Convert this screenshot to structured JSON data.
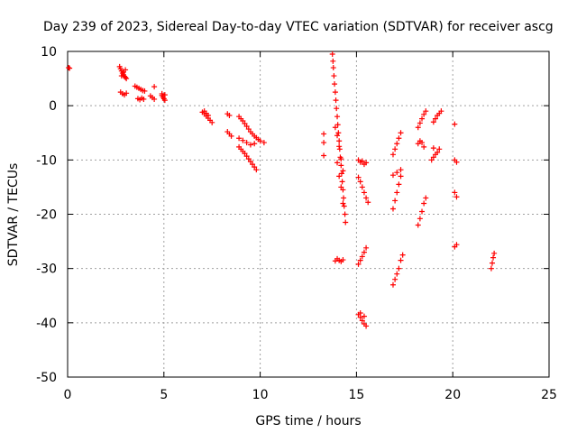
{
  "chart_data": {
    "type": "scatter",
    "title": "Day 239 of 2023, Sidereal Day-to-day VTEC variation (SDTVAR) for receiver ascg",
    "xlabel": "GPS time / hours",
    "ylabel": "SDTVAR / TECUs",
    "xlim": [
      0,
      25
    ],
    "ylim": [
      -50,
      10
    ],
    "xticks": [
      "0",
      "5",
      "10",
      "15",
      "20",
      "25"
    ],
    "yticks": [
      "10",
      "0",
      "-10",
      "-20",
      "-30",
      "-40",
      "-50"
    ],
    "grid": true,
    "marker": "+",
    "color": "#ff0000",
    "series": [
      {
        "name": "sdtvar",
        "points": [
          [
            0.05,
            7
          ],
          [
            0.1,
            6.9
          ],
          [
            2.7,
            7.2
          ],
          [
            2.75,
            6.8
          ],
          [
            2.8,
            6.4
          ],
          [
            2.85,
            6
          ],
          [
            2.9,
            5.7
          ],
          [
            2.95,
            5.4
          ],
          [
            3.0,
            5.2
          ],
          [
            3.05,
            5.0
          ],
          [
            2.8,
            5.5
          ],
          [
            2.9,
            6.2
          ],
          [
            3.0,
            6.6
          ],
          [
            2.75,
            2.5
          ],
          [
            2.85,
            2.2
          ],
          [
            2.95,
            2.0
          ],
          [
            3.05,
            2.3
          ],
          [
            3.5,
            3.6
          ],
          [
            3.6,
            3.4
          ],
          [
            3.7,
            3.2
          ],
          [
            3.8,
            3.0
          ],
          [
            3.9,
            2.8
          ],
          [
            4.0,
            2.7
          ],
          [
            3.65,
            1.3
          ],
          [
            3.75,
            1.1
          ],
          [
            3.85,
            1.4
          ],
          [
            3.95,
            1.2
          ],
          [
            4.3,
            1.8
          ],
          [
            4.4,
            1.5
          ],
          [
            4.5,
            1.2
          ],
          [
            4.5,
            3.5
          ],
          [
            4.9,
            1.9
          ],
          [
            4.95,
            1.6
          ],
          [
            5.0,
            1.3
          ],
          [
            5.05,
            1.0
          ],
          [
            4.9,
            2.2
          ],
          [
            5.05,
            2.0
          ],
          [
            7.0,
            -1.2
          ],
          [
            7.1,
            -1.5
          ],
          [
            7.2,
            -1.9
          ],
          [
            7.3,
            -2.3
          ],
          [
            7.4,
            -2.7
          ],
          [
            7.5,
            -3.1
          ],
          [
            7.1,
            -1.0
          ],
          [
            7.2,
            -1.4
          ],
          [
            7.3,
            -1.8
          ],
          [
            8.3,
            -1.5
          ],
          [
            8.4,
            -1.8
          ],
          [
            8.3,
            -4.8
          ],
          [
            8.4,
            -5.2
          ],
          [
            8.5,
            -5.6
          ],
          [
            8.9,
            -2.0
          ],
          [
            9.0,
            -2.4
          ],
          [
            9.1,
            -2.8
          ],
          [
            9.2,
            -3.3
          ],
          [
            9.3,
            -3.8
          ],
          [
            9.4,
            -4.3
          ],
          [
            9.5,
            -4.8
          ],
          [
            9.6,
            -5.2
          ],
          [
            9.7,
            -5.6
          ],
          [
            9.8,
            -5.9
          ],
          [
            9.9,
            -6.2
          ],
          [
            10.0,
            -6.5
          ],
          [
            8.9,
            -6.0
          ],
          [
            9.1,
            -6.4
          ],
          [
            9.3,
            -6.8
          ],
          [
            9.5,
            -7.2
          ],
          [
            9.7,
            -7.0
          ],
          [
            10.2,
            -6.8
          ],
          [
            8.9,
            -7.6
          ],
          [
            9.0,
            -8.0
          ],
          [
            9.1,
            -8.4
          ],
          [
            9.2,
            -8.8
          ],
          [
            9.3,
            -9.3
          ],
          [
            9.4,
            -9.8
          ],
          [
            9.5,
            -10.3
          ],
          [
            9.6,
            -10.8
          ],
          [
            9.7,
            -11.3
          ],
          [
            9.8,
            -11.8
          ],
          [
            13.3,
            -5.2
          ],
          [
            13.3,
            -6.8
          ],
          [
            13.3,
            -9.2
          ],
          [
            13.75,
            9.5
          ],
          [
            13.78,
            8.2
          ],
          [
            13.8,
            7.0
          ],
          [
            13.83,
            5.5
          ],
          [
            13.86,
            4.0
          ],
          [
            13.9,
            2.5
          ],
          [
            13.93,
            1.0
          ],
          [
            13.96,
            -0.5
          ],
          [
            14.0,
            -2.0
          ],
          [
            14.03,
            -3.5
          ],
          [
            14.06,
            -5.0
          ],
          [
            14.1,
            -6.5
          ],
          [
            14.13,
            -8.0
          ],
          [
            14.16,
            -9.5
          ],
          [
            14.2,
            -11.0
          ],
          [
            14.23,
            -12.5
          ],
          [
            14.26,
            -14.0
          ],
          [
            14.3,
            -15.5
          ],
          [
            14.33,
            -17.0
          ],
          [
            14.36,
            -18.5
          ],
          [
            14.4,
            -20.0
          ],
          [
            14.43,
            -21.5
          ],
          [
            13.9,
            -4.0
          ],
          [
            14.0,
            -5.5
          ],
          [
            14.1,
            -7.5
          ],
          [
            14.2,
            -9.8
          ],
          [
            14.3,
            -12.0
          ],
          [
            14.0,
            -10.5
          ],
          [
            14.1,
            -13.0
          ],
          [
            14.2,
            -15.0
          ],
          [
            14.3,
            -18.0
          ],
          [
            13.9,
            -28.6
          ],
          [
            14.0,
            -28.2
          ],
          [
            14.1,
            -28.5
          ],
          [
            14.2,
            -28.7
          ],
          [
            14.3,
            -28.4
          ],
          [
            15.1,
            -10.0
          ],
          [
            15.2,
            -10.4
          ],
          [
            15.3,
            -10.2
          ],
          [
            15.4,
            -10.8
          ],
          [
            15.5,
            -10.5
          ],
          [
            15.1,
            -13.2
          ],
          [
            15.2,
            -14.0
          ],
          [
            15.3,
            -15.0
          ],
          [
            15.4,
            -16.0
          ],
          [
            15.5,
            -17.0
          ],
          [
            15.6,
            -17.8
          ],
          [
            15.1,
            -29.2
          ],
          [
            15.2,
            -28.5
          ],
          [
            15.3,
            -27.8
          ],
          [
            15.4,
            -27.0
          ],
          [
            15.5,
            -26.2
          ],
          [
            15.1,
            -38.5
          ],
          [
            15.2,
            -39.0
          ],
          [
            15.3,
            -39.6
          ],
          [
            15.4,
            -40.2
          ],
          [
            15.5,
            -40.6
          ],
          [
            15.2,
            -38.2
          ],
          [
            15.4,
            -38.8
          ],
          [
            16.9,
            -9.0
          ],
          [
            17.0,
            -8.0
          ],
          [
            17.1,
            -7.0
          ],
          [
            17.2,
            -6.0
          ],
          [
            17.3,
            -5.0
          ],
          [
            16.9,
            -12.8
          ],
          [
            17.1,
            -12.3
          ],
          [
            17.3,
            -11.8
          ],
          [
            16.9,
            -19.0
          ],
          [
            17.0,
            -17.5
          ],
          [
            17.1,
            -16.0
          ],
          [
            17.2,
            -14.5
          ],
          [
            17.3,
            -13.0
          ],
          [
            16.9,
            -33.0
          ],
          [
            17.0,
            -32.0
          ],
          [
            17.1,
            -31.0
          ],
          [
            17.2,
            -30.0
          ],
          [
            17.3,
            -28.5
          ],
          [
            17.4,
            -27.5
          ],
          [
            18.2,
            -4.0
          ],
          [
            18.3,
            -3.2
          ],
          [
            18.4,
            -2.4
          ],
          [
            18.5,
            -1.6
          ],
          [
            18.6,
            -1.0
          ],
          [
            18.2,
            -7.0
          ],
          [
            18.3,
            -6.5
          ],
          [
            18.4,
            -6.8
          ],
          [
            18.5,
            -7.6
          ],
          [
            18.2,
            -22.0
          ],
          [
            18.3,
            -20.8
          ],
          [
            18.4,
            -19.5
          ],
          [
            18.5,
            -18.0
          ],
          [
            18.6,
            -17.0
          ],
          [
            18.9,
            -10.0
          ],
          [
            19.0,
            -9.5
          ],
          [
            19.1,
            -9.0
          ],
          [
            19.2,
            -8.6
          ],
          [
            19.3,
            -8.0
          ],
          [
            19.0,
            -7.8
          ],
          [
            19.0,
            -3.0
          ],
          [
            19.1,
            -2.4
          ],
          [
            19.2,
            -1.8
          ],
          [
            19.3,
            -1.4
          ],
          [
            19.4,
            -1.0
          ],
          [
            20.1,
            -3.4
          ],
          [
            20.1,
            -10.0
          ],
          [
            20.2,
            -10.4
          ],
          [
            20.1,
            -16.0
          ],
          [
            20.2,
            -16.8
          ],
          [
            20.1,
            -26.0
          ],
          [
            20.2,
            -25.6
          ],
          [
            22.0,
            -30.0
          ],
          [
            22.05,
            -29.0
          ],
          [
            22.1,
            -28.0
          ],
          [
            22.15,
            -27.2
          ]
        ]
      }
    ]
  }
}
